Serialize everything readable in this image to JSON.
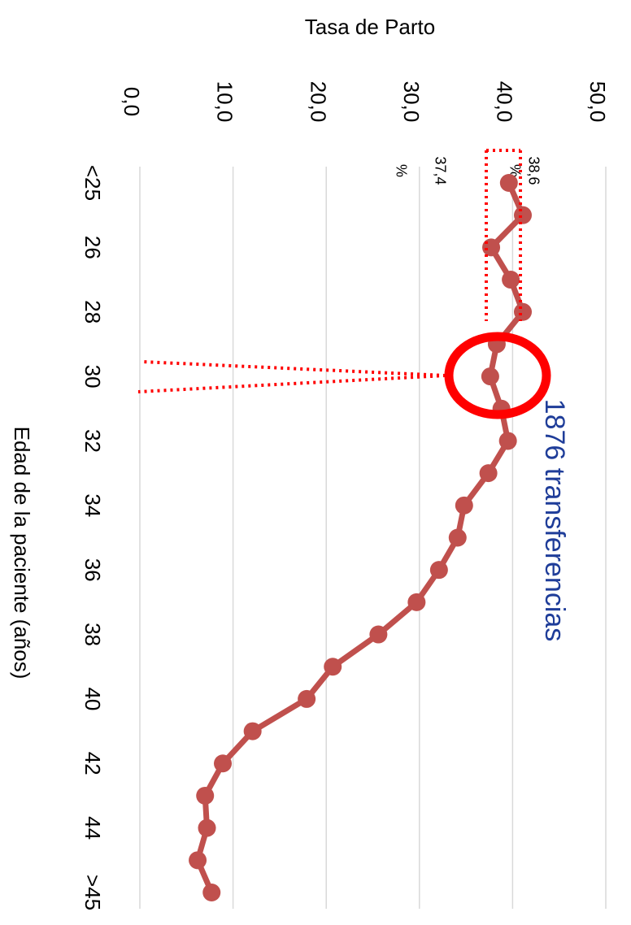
{
  "chart_data": {
    "type": "line",
    "title": "Tasa de Parto",
    "x_label": "Edad de la paciente (años)",
    "categories": [
      "<25",
      null,
      "26",
      null,
      "28",
      null,
      "30",
      null,
      "32",
      null,
      "34",
      null,
      "36",
      null,
      "38",
      null,
      "40",
      null,
      "42",
      null,
      "44",
      null,
      ">45"
    ],
    "series": [
      {
        "name": "Tasa de Parto",
        "color": "#c0504d",
        "values": [
          39.6,
          41.1,
          37.7,
          39.8,
          41.1,
          38.3,
          37.6,
          38.8,
          39.5,
          37.4,
          34.8,
          34.1,
          32.1,
          29.7,
          25.6,
          20.7,
          17.9,
          12.1,
          8.9,
          7.0,
          7.2,
          6.2,
          7.7
        ]
      }
    ],
    "ylim": [
      0,
      50
    ],
    "yticks": [
      {
        "value": 0,
        "label": "0,0"
      },
      {
        "value": 10,
        "label": "10,0"
      },
      {
        "value": 20,
        "label": "20,0"
      },
      {
        "value": 30,
        "label": "30,0"
      },
      {
        "value": 40,
        "label": "40,0"
      },
      {
        "value": 50,
        "label": "50,0"
      }
    ],
    "grid": true,
    "annotations": [
      [
        "38,6",
        "%"
      ],
      [
        "37,4",
        "%"
      ]
    ],
    "highlight_label": "1876 transferencias"
  }
}
